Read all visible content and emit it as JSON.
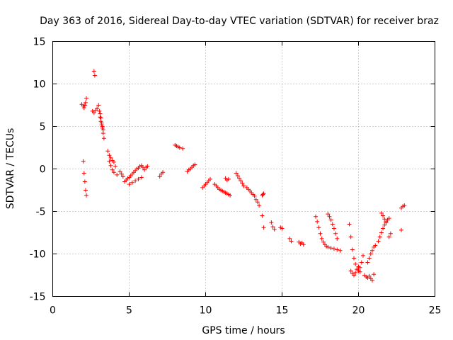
{
  "chart_data": {
    "type": "scatter",
    "title": "Day 363 of 2016, Sidereal Day-to-day VTEC variation (SDTVAR) for receiver braz",
    "xlabel": "GPS time / hours",
    "ylabel": "SDTVAR / TECUs",
    "xlim": [
      0,
      25
    ],
    "ylim": [
      -15,
      15
    ],
    "xticks": [
      "0",
      "5",
      "10",
      "15",
      "20",
      "25"
    ],
    "yticks": [
      "-15",
      "-10",
      "-5",
      "0",
      "5",
      "10",
      "15"
    ],
    "grid": true,
    "marker": "+",
    "color": "#ff0000",
    "series": [
      {
        "name": "SDTVAR",
        "x": [
          1.9,
          2.0,
          2.05,
          2.1,
          2.15,
          2.2,
          2.0,
          2.05,
          2.1,
          2.15,
          2.2,
          2.7,
          2.75,
          2.6,
          2.7,
          2.8,
          2.9,
          3.0,
          3.05,
          3.1,
          3.15,
          3.2,
          3.25,
          3.3,
          3.35,
          3.1,
          3.15,
          3.2,
          3.25,
          3.3,
          3.6,
          3.7,
          3.8,
          3.9,
          4.0,
          4.1,
          3.7,
          3.8,
          3.9,
          4.0,
          4.2,
          4.4,
          4.5,
          4.6,
          4.7,
          4.8,
          4.9,
          5.0,
          5.1,
          5.2,
          5.3,
          5.4,
          5.5,
          5.6,
          5.7,
          5.8,
          5.9,
          6.0,
          6.1,
          6.2,
          5.0,
          5.2,
          5.4,
          5.6,
          5.8,
          7.0,
          7.1,
          7.2,
          8.0,
          8.1,
          8.2,
          8.3,
          8.5,
          8.8,
          8.9,
          9.0,
          9.1,
          9.2,
          9.3,
          9.8,
          9.9,
          10.0,
          10.1,
          10.2,
          10.3,
          10.6,
          10.7,
          10.8,
          10.9,
          11.0,
          11.1,
          11.2,
          11.3,
          11.4,
          11.5,
          11.6,
          11.3,
          11.4,
          11.5,
          12.0,
          12.1,
          12.2,
          12.3,
          12.4,
          12.5,
          12.7,
          12.8,
          12.9,
          13.0,
          13.1,
          13.2,
          13.3,
          13.4,
          13.5,
          13.7,
          13.75,
          13.8,
          13.7,
          13.8,
          14.3,
          14.4,
          14.5,
          14.9,
          15.0,
          15.5,
          15.6,
          16.1,
          16.2,
          16.3,
          16.4,
          17.2,
          17.3,
          17.4,
          17.5,
          17.6,
          17.7,
          17.8,
          17.9,
          18.0,
          18.2,
          18.4,
          18.6,
          18.8,
          18.0,
          18.1,
          18.2,
          18.3,
          18.4,
          18.5,
          18.6,
          19.4,
          19.5,
          19.6,
          19.7,
          19.8,
          19.9,
          20.0,
          20.1,
          20.2,
          20.3,
          19.5,
          19.6,
          19.7,
          19.8,
          19.9,
          20.0,
          20.1,
          20.4,
          20.5,
          20.6,
          20.7,
          20.8,
          20.9,
          21.0,
          20.6,
          20.7,
          20.8,
          20.9,
          21.0,
          21.1,
          21.3,
          21.4,
          21.5,
          21.6,
          21.7,
          21.8,
          21.9,
          22.0,
          21.5,
          21.6,
          21.7,
          21.8,
          22.0,
          22.1,
          22.8,
          22.9,
          23.0,
          22.8
        ],
        "y": [
          7.6,
          7.4,
          7.2,
          7.5,
          7.8,
          8.3,
          0.9,
          -0.5,
          -1.5,
          -2.5,
          -3.1,
          11.5,
          11.0,
          6.8,
          6.6,
          6.9,
          7.1,
          7.5,
          6.8,
          6.1,
          5.6,
          5.2,
          4.8,
          4.2,
          3.6,
          6.5,
          6.0,
          5.4,
          5.0,
          4.6,
          2.1,
          1.6,
          1.3,
          1.0,
          0.8,
          0.3,
          0.9,
          0.4,
          -0.1,
          -0.4,
          -0.7,
          -0.3,
          -0.6,
          -0.9,
          -1.5,
          -1.3,
          -1.1,
          -1.0,
          -0.8,
          -0.6,
          -0.4,
          -0.2,
          0.0,
          0.1,
          0.3,
          0.4,
          0.2,
          -0.1,
          0.2,
          0.3,
          -1.8,
          -1.6,
          -1.4,
          -1.2,
          -1.0,
          -0.9,
          -0.6,
          -0.4,
          2.8,
          2.7,
          2.6,
          2.5,
          2.4,
          -0.3,
          -0.1,
          0.0,
          0.2,
          0.4,
          0.5,
          -2.2,
          -2.0,
          -1.8,
          -1.6,
          -1.4,
          -1.2,
          -1.8,
          -2.0,
          -2.2,
          -2.4,
          -2.5,
          -2.6,
          -2.7,
          -2.8,
          -2.9,
          -3.0,
          -3.1,
          -1.1,
          -1.3,
          -1.2,
          -0.5,
          -0.8,
          -1.1,
          -1.4,
          -1.7,
          -2.0,
          -2.2,
          -2.4,
          -2.6,
          -2.8,
          -3.0,
          -3.2,
          -3.6,
          -3.9,
          -4.3,
          -3.1,
          -3.0,
          -2.9,
          -5.5,
          -6.9,
          -6.3,
          -6.8,
          -7.1,
          -6.9,
          -7.0,
          -8.2,
          -8.5,
          -8.6,
          -8.8,
          -8.7,
          -8.9,
          -5.6,
          -6.2,
          -6.9,
          -7.6,
          -8.2,
          -8.6,
          -8.9,
          -9.1,
          -9.2,
          -9.3,
          -9.4,
          -9.5,
          -9.6,
          -5.3,
          -5.6,
          -6.0,
          -6.5,
          -7.0,
          -7.6,
          -8.2,
          -6.5,
          -8.0,
          -9.5,
          -10.5,
          -11.2,
          -11.8,
          -12.0,
          -11.6,
          -11.0,
          -10.2,
          -12.0,
          -12.3,
          -12.5,
          -12.2,
          -11.8,
          -11.5,
          -12.1,
          -12.5,
          -12.7,
          -12.8,
          -12.6,
          -12.9,
          -13.1,
          -12.4,
          -11.0,
          -10.5,
          -10.0,
          -9.6,
          -9.2,
          -9.0,
          -8.5,
          -8.0,
          -7.5,
          -7.0,
          -6.6,
          -6.3,
          -6.0,
          -5.8,
          -5.2,
          -5.5,
          -5.9,
          -6.2,
          -8.0,
          -7.6,
          -4.6,
          -4.4,
          -4.3,
          -7.2
        ]
      }
    ]
  }
}
